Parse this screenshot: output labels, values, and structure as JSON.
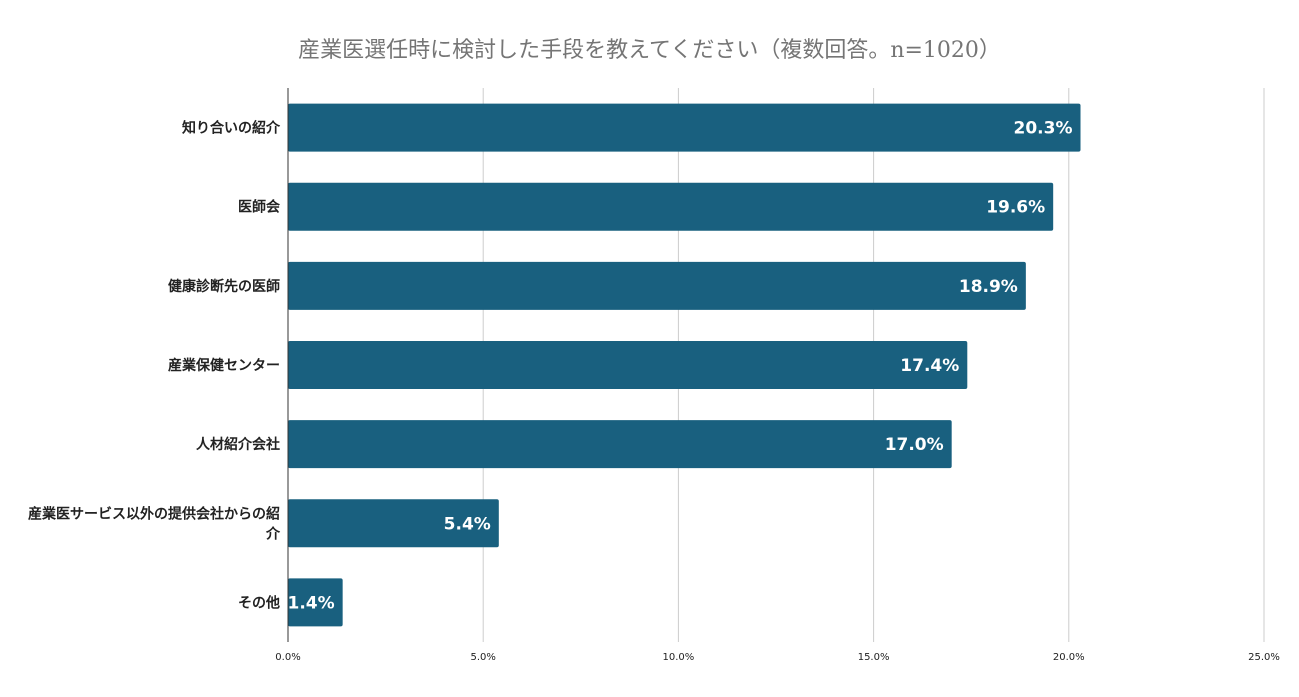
{
  "chart_data": {
    "type": "bar",
    "orientation": "horizontal",
    "title": "産業医選任時に検討した手段を教えてください（複数回答。n=1020）",
    "categories": [
      "知り合いの紹介",
      "医師会",
      "健康診断先の医師",
      "産業保健センター",
      "人材紹介会社",
      "産業医サービス以外の提供会社からの紹介",
      "その他"
    ],
    "values": [
      20.3,
      19.6,
      18.9,
      17.4,
      17.0,
      5.4,
      1.4
    ],
    "value_labels": [
      "20.3%",
      "19.6%",
      "18.9%",
      "17.4%",
      "17.0%",
      "5.4%",
      "1.4%"
    ],
    "xlim": [
      0,
      25
    ],
    "xticks": [
      0,
      5,
      10,
      15,
      20,
      25
    ],
    "xtick_labels": [
      "0.0%",
      "5.0%",
      "10.0%",
      "15.0%",
      "20.0%",
      "25.0%"
    ],
    "xlabel": "",
    "ylabel": "",
    "grid": true,
    "legend": "none",
    "bar_color": "#19607f"
  }
}
